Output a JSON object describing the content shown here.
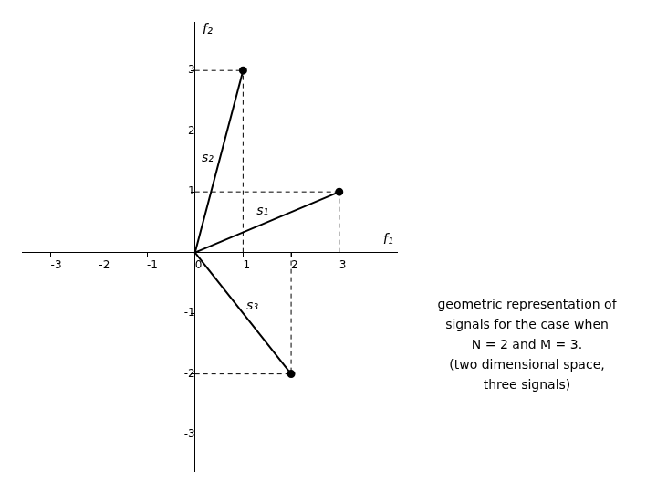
{
  "chart_data": {
    "type": "vector",
    "xlabel": "f₁",
    "ylabel": "f₂",
    "vectors": [
      {
        "name": "s₁",
        "x": 3,
        "y": 1
      },
      {
        "name": "s₂",
        "x": 1,
        "y": 3
      },
      {
        "name": "s₃",
        "x": 2,
        "y": -2
      }
    ],
    "dashed_lines": [
      {
        "x1": 3,
        "y1": 0,
        "x2": 3,
        "y2": 1
      },
      {
        "x1": 0,
        "y1": 1,
        "x2": 3,
        "y2": 1
      },
      {
        "x1": 1,
        "y1": 0,
        "x2": 1,
        "y2": 3
      },
      {
        "x1": 0,
        "y1": 3,
        "x2": 1,
        "y2": 3
      },
      {
        "x1": 2,
        "y1": 0,
        "x2": 2,
        "y2": -2
      },
      {
        "x1": 0,
        "y1": -2,
        "x2": 2,
        "y2": -2
      }
    ],
    "xlim": [
      -3.6,
      4.2
    ],
    "ylim": [
      -3.6,
      3.8
    ],
    "xticks": [
      -3,
      -2,
      -1,
      0,
      1,
      2,
      3
    ],
    "yticks": [
      -3,
      -2,
      -1,
      1,
      2,
      3
    ],
    "color": "#000000",
    "grid": false,
    "annotations": [
      "geometric representation of",
      "signals for the case when",
      "N = 2 and M = 3.",
      "(two dimensional space,",
      "three signals)"
    ]
  }
}
